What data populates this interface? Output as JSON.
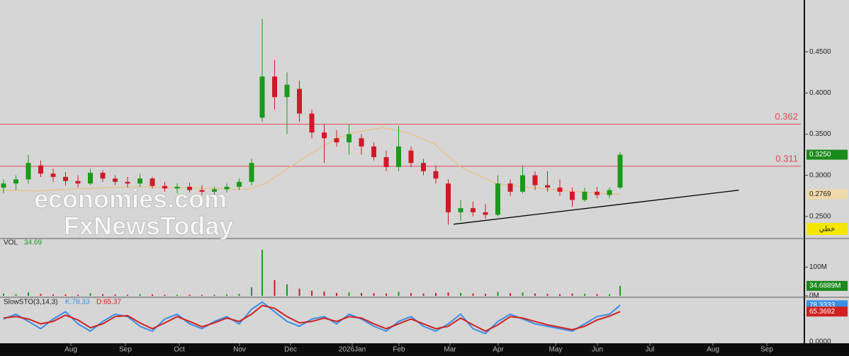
{
  "chart_data": [
    {
      "type": "candlestick",
      "x": [
        2,
        9,
        16,
        23,
        30,
        37,
        44,
        51,
        58,
        65,
        72,
        79,
        86,
        93,
        100,
        107,
        114,
        121,
        128,
        135,
        142,
        148,
        155,
        162,
        169,
        176,
        183,
        190,
        197,
        204,
        211,
        218,
        225,
        232,
        239,
        246,
        253,
        260,
        267,
        274,
        281,
        288,
        295,
        302,
        309,
        316,
        323,
        330,
        337,
        344,
        350
      ],
      "open": [
        0.285,
        0.29,
        0.295,
        0.312,
        0.302,
        0.298,
        0.293,
        0.29,
        0.303,
        0.296,
        0.292,
        0.29,
        0.296,
        0.287,
        0.284,
        0.286,
        0.282,
        0.28,
        0.283,
        0.286,
        0.292,
        0.37,
        0.42,
        0.395,
        0.405,
        0.375,
        0.352,
        0.345,
        0.34,
        0.345,
        0.335,
        0.322,
        0.31,
        0.33,
        0.315,
        0.305,
        0.29,
        0.255,
        0.26,
        0.255,
        0.252,
        0.29,
        0.28,
        0.3,
        0.288,
        0.285,
        0.28,
        0.27,
        0.28,
        0.276,
        0.285
      ],
      "high": [
        0.295,
        0.3,
        0.325,
        0.318,
        0.308,
        0.304,
        0.3,
        0.308,
        0.306,
        0.3,
        0.298,
        0.302,
        0.298,
        0.292,
        0.29,
        0.291,
        0.288,
        0.286,
        0.29,
        0.296,
        0.32,
        0.49,
        0.44,
        0.425,
        0.415,
        0.38,
        0.362,
        0.355,
        0.362,
        0.35,
        0.34,
        0.33,
        0.36,
        0.335,
        0.32,
        0.312,
        0.295,
        0.27,
        0.268,
        0.265,
        0.3,
        0.295,
        0.312,
        0.305,
        0.305,
        0.295,
        0.285,
        0.285,
        0.286,
        0.285,
        0.328
      ],
      "low": [
        0.278,
        0.282,
        0.29,
        0.298,
        0.292,
        0.288,
        0.285,
        0.288,
        0.292,
        0.288,
        0.285,
        0.286,
        0.284,
        0.28,
        0.278,
        0.279,
        0.276,
        0.276,
        0.279,
        0.282,
        0.288,
        0.365,
        0.38,
        0.35,
        0.365,
        0.345,
        0.315,
        0.335,
        0.325,
        0.325,
        0.318,
        0.305,
        0.305,
        0.31,
        0.3,
        0.29,
        0.24,
        0.245,
        0.25,
        0.247,
        0.25,
        0.275,
        0.278,
        0.282,
        0.28,
        0.275,
        0.262,
        0.268,
        0.272,
        0.272,
        0.283
      ],
      "close": [
        0.29,
        0.295,
        0.315,
        0.302,
        0.298,
        0.293,
        0.29,
        0.303,
        0.296,
        0.292,
        0.29,
        0.296,
        0.287,
        0.284,
        0.286,
        0.282,
        0.28,
        0.283,
        0.286,
        0.292,
        0.315,
        0.42,
        0.395,
        0.41,
        0.375,
        0.352,
        0.345,
        0.34,
        0.35,
        0.335,
        0.322,
        0.31,
        0.335,
        0.315,
        0.305,
        0.296,
        0.255,
        0.26,
        0.255,
        0.252,
        0.29,
        0.28,
        0.3,
        0.288,
        0.285,
        0.28,
        0.27,
        0.28,
        0.276,
        0.282,
        0.325
      ],
      "last_label": "0.3250",
      "up_color": "#1a9a1a",
      "down_color": "#d01828",
      "ma": {
        "color": "#e6c48c",
        "x": [
          0,
          20,
          40,
          60,
          80,
          100,
          120,
          140,
          150,
          160,
          176,
          190,
          200,
          216,
          230,
          245,
          260,
          280,
          300,
          320,
          340,
          350
        ],
        "values": [
          0.282,
          0.281,
          0.283,
          0.285,
          0.286,
          0.285,
          0.284,
          0.283,
          0.29,
          0.305,
          0.327,
          0.345,
          0.352,
          0.358,
          0.352,
          0.338,
          0.31,
          0.29,
          0.285,
          0.281,
          0.278,
          0.2769
        ],
        "last_label": "0.2769"
      },
      "levels": [
        0.362,
        0.311
      ],
      "level_color": "#e04858",
      "trendline": {
        "color": "#000000",
        "x": [
          256,
          417
        ],
        "values": [
          0.2405,
          0.2819
        ]
      },
      "ylim": [
        0.224,
        0.513
      ],
      "yticks": [
        {
          "value": 0.25,
          "label": "0.2500"
        },
        {
          "value": 0.3,
          "label": "0.3000"
        },
        {
          "value": 0.35,
          "label": "0.3500"
        },
        {
          "value": 0.4,
          "label": "0.4000"
        },
        {
          "value": 0.45,
          "label": "0.4500"
        }
      ],
      "mode_label": "خطي",
      "watermarks": [
        "economies.com",
        "FxNewsToday"
      ]
    },
    {
      "type": "bar",
      "title": "VOL",
      "legend": "34.69",
      "x": [
        2,
        9,
        16,
        23,
        30,
        37,
        44,
        51,
        58,
        65,
        72,
        79,
        86,
        93,
        100,
        107,
        114,
        121,
        128,
        135,
        142,
        148,
        155,
        162,
        169,
        176,
        183,
        190,
        197,
        204,
        211,
        218,
        225,
        232,
        239,
        246,
        253,
        260,
        267,
        274,
        281,
        288,
        295,
        302,
        309,
        316,
        323,
        330,
        337,
        344,
        350
      ],
      "values": [
        8,
        6,
        12,
        7,
        5,
        5,
        4,
        9,
        6,
        5,
        4,
        6,
        5,
        4,
        4,
        4,
        3,
        4,
        5,
        7,
        30,
        160,
        55,
        40,
        25,
        18,
        15,
        10,
        12,
        10,
        9,
        8,
        14,
        9,
        8,
        10,
        12,
        10,
        8,
        7,
        14,
        9,
        12,
        8,
        7,
        6,
        8,
        7,
        6,
        6,
        34.6889
      ],
      "last_label": "34.6889M",
      "ylim": [
        0,
        197
      ],
      "yticks": [
        {
          "value": 0,
          "label": "0M"
        },
        {
          "value": 100,
          "label": "100M"
        }
      ]
    },
    {
      "type": "line",
      "title": "SlowSTO(3,14,3)",
      "x": [
        2,
        9,
        16,
        23,
        30,
        37,
        44,
        51,
        58,
        65,
        72,
        79,
        86,
        93,
        100,
        107,
        114,
        121,
        128,
        135,
        142,
        148,
        155,
        162,
        169,
        176,
        183,
        190,
        197,
        204,
        211,
        218,
        225,
        232,
        239,
        246,
        253,
        260,
        267,
        274,
        281,
        288,
        295,
        302,
        309,
        316,
        323,
        330,
        337,
        344,
        350
      ],
      "series": [
        {
          "name": "K:78.33",
          "color": "#3a8ee6",
          "last_label": "78.3333",
          "values": [
            50,
            60,
            45,
            30,
            50,
            65,
            40,
            25,
            45,
            60,
            55,
            35,
            25,
            50,
            60,
            40,
            30,
            45,
            55,
            40,
            70,
            85,
            65,
            45,
            35,
            50,
            55,
            40,
            60,
            50,
            35,
            25,
            45,
            55,
            35,
            25,
            40,
            60,
            30,
            20,
            45,
            60,
            50,
            40,
            35,
            30,
            25,
            40,
            55,
            60,
            78.3333
          ]
        },
        {
          "name": "D:65.37",
          "color": "#d02020",
          "last_label": "65.3692",
          "values": [
            52,
            55,
            50,
            40,
            45,
            58,
            48,
            32,
            40,
            55,
            57,
            42,
            30,
            42,
            55,
            45,
            34,
            42,
            52,
            45,
            60,
            78,
            72,
            55,
            42,
            45,
            52,
            45,
            55,
            52,
            40,
            30,
            40,
            50,
            40,
            30,
            35,
            52,
            38,
            25,
            38,
            55,
            52,
            45,
            38,
            33,
            28,
            35,
            48,
            56,
            65.3692
          ]
        }
      ],
      "ylim": [
        0,
        93.4
      ],
      "yticks": [
        {
          "value": 0,
          "label": "0.0000"
        }
      ],
      "xlim": [
        0,
        452
      ],
      "xticks": [
        {
          "value": 40,
          "label": "Aug"
        },
        {
          "value": 70.8,
          "label": "Sep"
        },
        {
          "value": 101.2,
          "label": "Oct"
        },
        {
          "value": 135.2,
          "label": "Nov"
        },
        {
          "value": 164,
          "label": "Dec"
        },
        {
          "value": 198.8,
          "label": "2026Jan"
        },
        {
          "value": 225.2,
          "label": "Feb"
        },
        {
          "value": 254,
          "label": "Mar"
        },
        {
          "value": 281.2,
          "label": "Apr"
        },
        {
          "value": 313.6,
          "label": "May"
        },
        {
          "value": 337.2,
          "label": "Jun"
        },
        {
          "value": 366.8,
          "label": "Jul"
        },
        {
          "value": 402.4,
          "label": "Aug"
        },
        {
          "value": 432.8,
          "label": "Sep"
        }
      ]
    }
  ]
}
